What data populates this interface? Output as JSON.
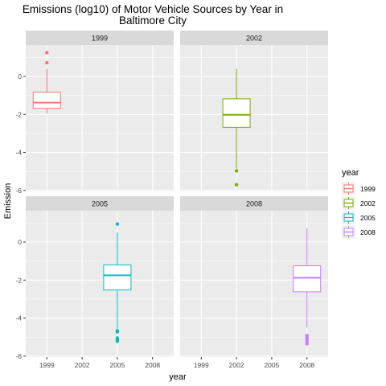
{
  "chart_data": {
    "type": "boxplot",
    "title": "Emissions (log10) of Motor Vehicle Sources by Year in Baltimore City",
    "title_lines": [
      "Emissions (log10) of Motor Vehicle Sources by Year in",
      "Baltimore City"
    ],
    "xlabel": "year",
    "ylabel": "Emission",
    "x_categories": [
      "1999",
      "2002",
      "2005",
      "2008"
    ],
    "x_tick_labels": [
      "1999",
      "2002",
      "2005",
      "2008"
    ],
    "y_ticks": [
      0,
      -2,
      -4,
      -6
    ],
    "y_tick_labels": [
      "0",
      "-2",
      "-4",
      "-6"
    ],
    "ylim": [
      -6.05,
      1.65
    ],
    "legend": {
      "title": "year",
      "placement": "right",
      "entries": [
        {
          "label": "1999",
          "color": "#F8766D"
        },
        {
          "label": "2002",
          "color": "#7CAE00"
        },
        {
          "label": "2005",
          "color": "#00BFC4"
        },
        {
          "label": "2008",
          "color": "#C77CFF"
        }
      ]
    },
    "facets": [
      {
        "label": "1999",
        "category": "1999",
        "color": "#F8766D",
        "box": {
          "whisker_low": -1.95,
          "q1": -1.68,
          "median": -1.38,
          "q3": -0.83,
          "whisker_high": 0.4
        },
        "outliers": [
          1.25,
          0.72
        ]
      },
      {
        "label": "2002",
        "category": "2002",
        "color": "#7CAE00",
        "box": {
          "whisker_low": -4.85,
          "q1": -2.68,
          "median": -2.02,
          "q3": -1.18,
          "whisker_high": 0.4
        },
        "outliers": [
          -4.97,
          -5.7
        ]
      },
      {
        "label": "2005",
        "category": "2005",
        "color": "#00BFC4",
        "box": {
          "whisker_low": -4.6,
          "q1": -2.52,
          "median": -1.75,
          "q3": -1.2,
          "whisker_high": 0.5
        },
        "outliers": [
          0.95,
          -4.68,
          -4.72,
          -5.05,
          -5.15,
          -5.22
        ]
      },
      {
        "label": "2008",
        "category": "2008",
        "color": "#C77CFF",
        "box": {
          "whisker_low": -4.5,
          "q1": -2.62,
          "median": -1.88,
          "q3": -1.25,
          "whisker_high": 0.72
        },
        "outliers": [
          -4.92,
          -5.02,
          -5.1,
          -5.22,
          -5.35
        ]
      }
    ]
  }
}
